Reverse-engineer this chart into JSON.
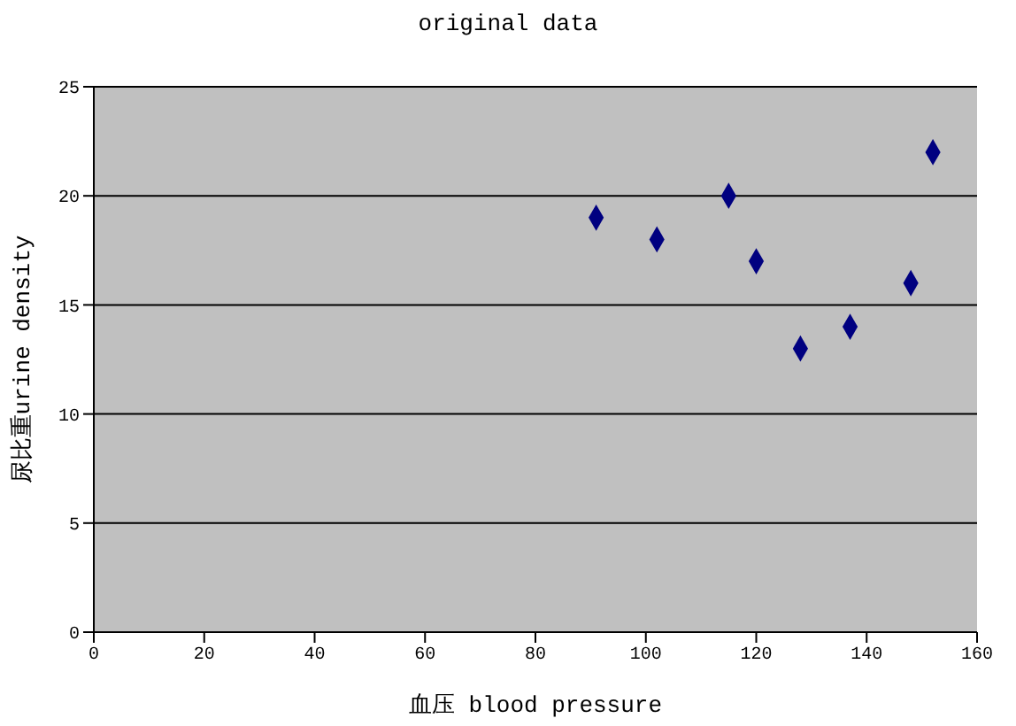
{
  "chart_data": {
    "type": "scatter",
    "title": "original data",
    "xlabel": "血压 blood pressure",
    "ylabel": "尿比重urine density",
    "x": [
      91,
      102,
      115,
      120,
      128,
      137,
      148,
      152
    ],
    "values": [
      19,
      18,
      20,
      17,
      13,
      14,
      16,
      22
    ],
    "color": "#000080",
    "marker": "diamond",
    "xlim": [
      0,
      160
    ],
    "xticks": [
      0,
      20,
      40,
      60,
      80,
      100,
      120,
      140,
      160
    ],
    "ylim": [
      0,
      25
    ],
    "yticks": [
      0,
      5,
      10,
      15,
      20,
      25
    ],
    "grid": "y",
    "legend": false
  }
}
